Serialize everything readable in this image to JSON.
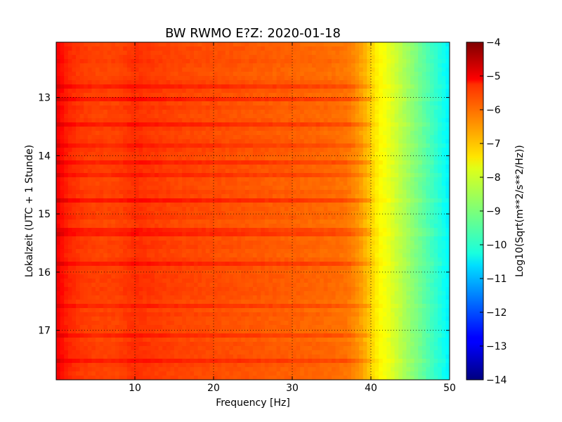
{
  "chart_data": {
    "type": "heatmap",
    "title": "BW RWMO E?Z: 2020-01-18",
    "xlabel": "Frequency [Hz]",
    "ylabel": "Lokalzeit (UTC + 1 Stunde)",
    "xlim": [
      0,
      50
    ],
    "ylim": [
      12.05,
      17.85
    ],
    "y_inverted": true,
    "x_ticks": [
      10,
      20,
      30,
      40,
      50
    ],
    "x_tick_labels": [
      "10",
      "20",
      "30",
      "40",
      "50"
    ],
    "y_ticks": [
      13,
      14,
      15,
      16,
      17
    ],
    "y_tick_labels": [
      "13",
      "14",
      "15",
      "16",
      "17"
    ],
    "grid": true,
    "colormap": "jet",
    "colorbar": {
      "label": "Log10(Sqrt(m**2/s**2/Hz))",
      "range": [
        -14,
        -4
      ],
      "ticks": [
        -4,
        -5,
        -6,
        -7,
        -8,
        -9,
        -10,
        -11,
        -12,
        -13,
        -14
      ],
      "tick_labels": [
        "−4",
        "−5",
        "−6",
        "−7",
        "−8",
        "−9",
        "−10",
        "−11",
        "−12",
        "−13",
        "−14"
      ]
    },
    "frequency_profile": {
      "frequency_hz": [
        0,
        0.5,
        1.5,
        3,
        5,
        8,
        10,
        12,
        15,
        20,
        25,
        30,
        35,
        37,
        38,
        39,
        40,
        41,
        42,
        43,
        44,
        45,
        46,
        47,
        48,
        49,
        50
      ],
      "log10_amplitude": [
        -5.1,
        -5.3,
        -5.6,
        -5.8,
        -5.9,
        -5.9,
        -5.7,
        -5.8,
        -5.9,
        -6.0,
        -6.1,
        -6.2,
        -6.3,
        -6.4,
        -6.6,
        -6.9,
        -7.3,
        -7.7,
        -7.9,
        -8.2,
        -8.5,
        -8.8,
        -9.1,
        -9.4,
        -9.7,
        -10.0,
        -10.4
      ]
    }
  }
}
